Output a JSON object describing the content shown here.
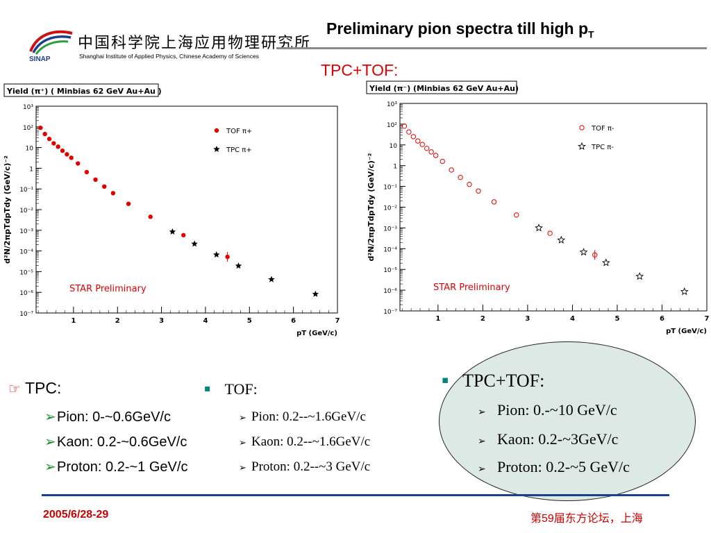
{
  "header": {
    "logo_cn": "中国科学院上海应用物理研究所",
    "logo_en": "Shanghai Institute of Applied Physics, Chinese Academy of Sciences",
    "logo_abbr": "SINAP",
    "title_main": "Preliminary pion spectra till high p",
    "title_sub": "T",
    "subtitle": "TPC+TOF:"
  },
  "chart_data": [
    {
      "type": "scatter",
      "title": "Yield (π⁺) ( Minbias 62 GeV Au+Au )",
      "xlabel": "pT (GeV/c)",
      "ylabel": "d²N/2πpTdpTdy (GeV/c)⁻²",
      "xlim": [
        0.15,
        7
      ],
      "ylim_log10": [
        -7,
        3
      ],
      "log_y": true,
      "x_ticks": [
        "1",
        "2",
        "3",
        "4",
        "5",
        "6",
        "7"
      ],
      "y_ticks": [
        "10³",
        "10²",
        "10",
        "1",
        "10⁻¹",
        "10⁻²",
        "10⁻³",
        "10⁻⁴",
        "10⁻⁵",
        "10⁻⁶",
        "10⁻⁷"
      ],
      "annotation": "STAR Preliminary",
      "annotation_color": "#e00000",
      "series": [
        {
          "name": "TOF π+",
          "marker": "filled-circle",
          "color": "#e00000",
          "x": [
            0.25,
            0.35,
            0.45,
            0.55,
            0.65,
            0.75,
            0.85,
            0.95,
            1.1,
            1.3,
            1.5,
            1.7,
            1.9,
            2.25,
            2.75,
            3.5,
            4.5
          ],
          "y": [
            90,
            45,
            26,
            16,
            11,
            7,
            4.7,
            3.2,
            1.7,
            0.65,
            0.28,
            0.13,
            0.062,
            0.019,
            0.0045,
            0.00058,
            5.2e-05
          ]
        },
        {
          "name": "TPC π+",
          "marker": "filled-star",
          "color": "#000000",
          "x": [
            3.25,
            3.75,
            4.25,
            4.75,
            5.5,
            6.5
          ],
          "y": [
            0.00085,
            0.00022,
            6.6e-05,
            1.9e-05,
            4.2e-06,
            8.2e-07
          ]
        }
      ]
    },
    {
      "type": "scatter",
      "title": "Yield (π⁻) (Minbias 62 GeV Au+Au)",
      "xlabel": "pT (GeV/c)",
      "ylabel": "d²N/2πpTdpTdy (GeV/c)⁻²",
      "xlim": [
        0.15,
        7
      ],
      "ylim_log10": [
        -7,
        3
      ],
      "log_y": true,
      "x_ticks": [
        "1",
        "2",
        "3",
        "4",
        "5",
        "6",
        "7"
      ],
      "y_ticks": [
        "10³",
        "10²",
        "10",
        "1",
        "10⁻¹",
        "10⁻²",
        "10⁻³",
        "10⁻⁴",
        "10⁻⁵",
        "10⁻⁶",
        "10⁻⁷"
      ],
      "annotation": "STAR Preliminary",
      "annotation_color": "#e00000",
      "series": [
        {
          "name": "TOF π-",
          "marker": "open-circle",
          "color": "#e00000",
          "x": [
            0.25,
            0.35,
            0.45,
            0.55,
            0.65,
            0.75,
            0.85,
            0.95,
            1.1,
            1.3,
            1.5,
            1.7,
            1.9,
            2.25,
            2.75,
            3.5,
            4.5
          ],
          "y": [
            80,
            42,
            25,
            15.5,
            10.5,
            6.8,
            4.6,
            3.1,
            1.6,
            0.62,
            0.27,
            0.125,
            0.06,
            0.018,
            0.0042,
            0.00055,
            5e-05
          ]
        },
        {
          "name": "TPC π-",
          "marker": "open-star",
          "color": "#000000",
          "x": [
            3.25,
            3.75,
            4.25,
            4.75,
            5.5,
            6.5
          ],
          "y": [
            0.001,
            0.00026,
            6.8e-05,
            2.1e-05,
            4.6e-06,
            8.5e-07
          ]
        }
      ]
    }
  ],
  "bullets": {
    "tpc": {
      "marker": "☞",
      "heading": "TPC:",
      "items": [
        "Pion: 0-~0.6GeV/c",
        "Kaon: 0.2-~0.6GeV/c",
        "Proton: 0.2-~1 GeV/c"
      ]
    },
    "tof": {
      "marker": "▪",
      "heading": "TOF:",
      "items": [
        "Pion: 0.2--~1.6GeV/c",
        "Kaon: 0.2--~1.6GeV/c",
        "Proton: 0.2--~3 GeV/c"
      ]
    },
    "combined": {
      "marker": "▪",
      "heading": "TPC+TOF:",
      "items": [
        "Pion: 0.-~10 GeV/c",
        "Kaon: 0.2-~3GeV/c",
        "Proton: 0.2-~5 GeV/c"
      ]
    },
    "sub_marker": "➢"
  },
  "footer": {
    "date": "2005/6/28-29",
    "event": "第59届东方论坛，上海"
  },
  "colors": {
    "accent_red": "#e00000",
    "rule_blue": "#1a3f8f",
    "bullet_teal": "#00857a",
    "oval_fill": "#dde9e5"
  }
}
